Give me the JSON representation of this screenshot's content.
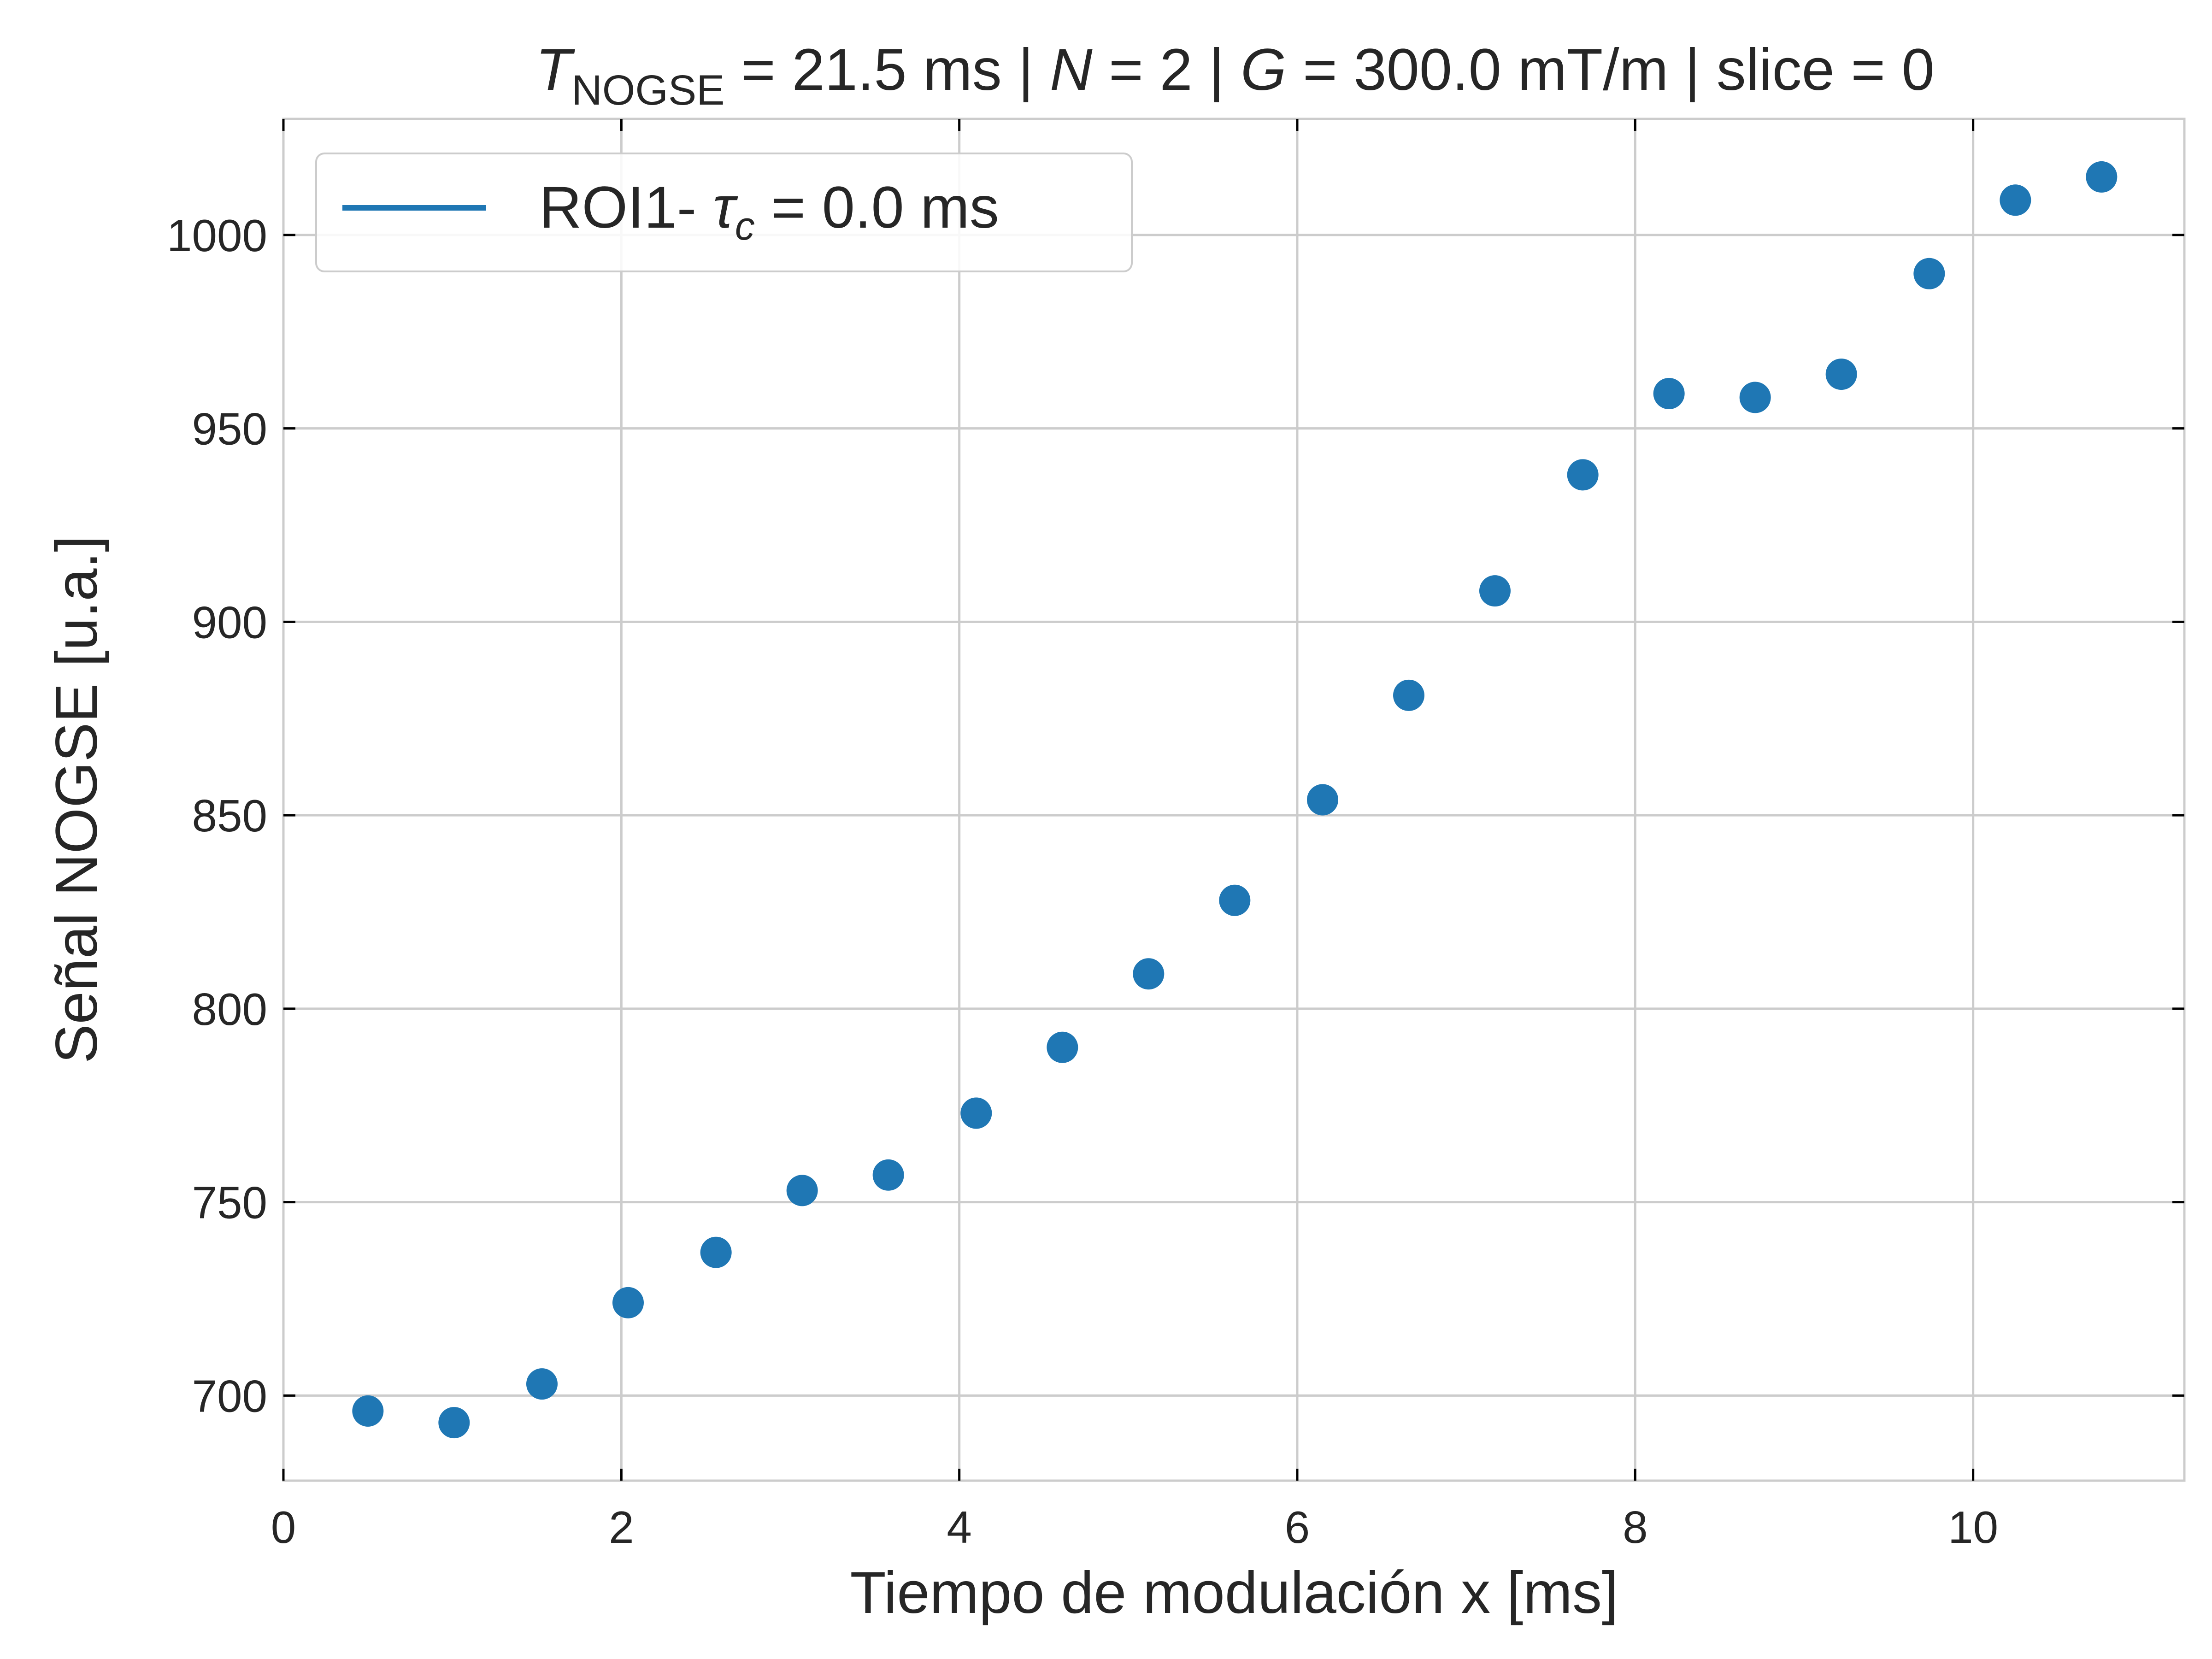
{
  "chart_data": {
    "type": "scatter",
    "title": {
      "t_symbol": "T",
      "t_sub": "NOGSE",
      "rest_1": " = 21.5 ms | ",
      "n_symbol": "N",
      "rest_2": " = 2 | ",
      "g_symbol": "G",
      "rest_3": " = 300.0 mT/m | slice = 0"
    },
    "xlabel": "Tiempo de modulación x [ms]",
    "ylabel": "Señal NOGSE [u.a.]",
    "xlim": [
      0,
      11.25
    ],
    "ylim": [
      678,
      1030
    ],
    "x_ticks": [
      0,
      2,
      4,
      6,
      8,
      10
    ],
    "y_ticks": [
      700,
      750,
      800,
      850,
      900,
      950,
      1000
    ],
    "grid": true,
    "legend_position": "top-left",
    "series": [
      {
        "name": "ROI1- τc = 0.0 ms",
        "legend": {
          "prefix": "ROI1- ",
          "tau": "τ",
          "tau_sub": "c",
          "suffix": " = 0.0 ms"
        },
        "color": "#1f77b4",
        "x": [
          0.5,
          1.01,
          1.53,
          2.04,
          2.56,
          3.07,
          3.58,
          4.1,
          4.61,
          5.12,
          5.63,
          6.15,
          6.66,
          7.17,
          7.69,
          8.2,
          8.71,
          9.22,
          9.74,
          10.25,
          10.76
        ],
        "y": [
          696,
          693,
          703,
          724,
          737,
          753,
          757,
          773,
          790,
          809,
          828,
          854,
          881,
          908,
          938,
          959,
          958,
          964,
          990,
          1009,
          1015
        ]
      }
    ]
  }
}
